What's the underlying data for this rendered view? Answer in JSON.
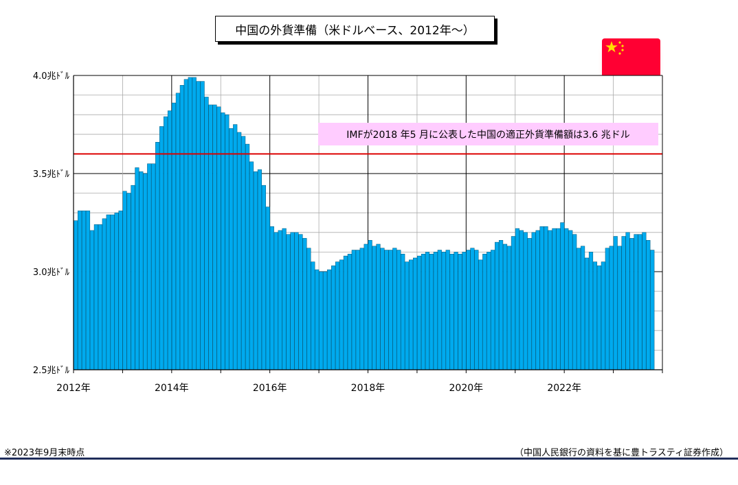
{
  "title": "中国の外貨準備（米ドルベース、2012年～）",
  "note_left": "※2023年9月末時点",
  "note_right": "（中国人民銀行の資料を基に豊トラスティ証券作成）",
  "imf_annotation": "IMFが2018 年5 月に公表した中国の適正外貨準備額は3.6 兆ドル",
  "flag": {
    "name": "china-flag-icon",
    "color": "#ff0033",
    "star_color": "#ffde00"
  },
  "chart_data": {
    "type": "bar",
    "title": "中国の外貨準備（米ドルベース、2012年～）",
    "xlabel": "",
    "ylabel": "",
    "ylim": [
      2.5,
      4.0
    ],
    "yticks": [
      2.5,
      3.0,
      3.5,
      4.0
    ],
    "ytick_labels": [
      "2.5兆ﾄﾞﾙ",
      "3.0兆ﾄﾞﾙ",
      "3.5兆ﾄﾞﾙ",
      "4.0兆ﾄﾞﾙ"
    ],
    "xtick_labels": [
      "2012年",
      "2014年",
      "2016年",
      "2018年",
      "2020年",
      "2022年"
    ],
    "start": "2012-01",
    "end": "2023-09",
    "bar_color": "#00aaee",
    "reference_line": {
      "value": 3.6,
      "color": "#dd0000"
    },
    "grid": true,
    "values": [
      3.26,
      3.31,
      3.31,
      3.31,
      3.21,
      3.24,
      3.24,
      3.27,
      3.29,
      3.29,
      3.3,
      3.31,
      3.41,
      3.4,
      3.44,
      3.53,
      3.51,
      3.5,
      3.55,
      3.55,
      3.66,
      3.74,
      3.79,
      3.82,
      3.86,
      3.91,
      3.95,
      3.98,
      3.99,
      3.99,
      3.97,
      3.97,
      3.89,
      3.85,
      3.85,
      3.84,
      3.81,
      3.8,
      3.73,
      3.75,
      3.71,
      3.69,
      3.65,
      3.56,
      3.51,
      3.52,
      3.44,
      3.33,
      3.23,
      3.2,
      3.21,
      3.22,
      3.19,
      3.2,
      3.2,
      3.19,
      3.17,
      3.12,
      3.05,
      3.01,
      3.0,
      3.0,
      3.01,
      3.03,
      3.05,
      3.06,
      3.08,
      3.09,
      3.11,
      3.11,
      3.12,
      3.14,
      3.16,
      3.13,
      3.14,
      3.12,
      3.11,
      3.11,
      3.12,
      3.11,
      3.09,
      3.05,
      3.06,
      3.07,
      3.08,
      3.09,
      3.1,
      3.09,
      3.1,
      3.11,
      3.1,
      3.11,
      3.09,
      3.1,
      3.09,
      3.1,
      3.11,
      3.12,
      3.11,
      3.06,
      3.09,
      3.1,
      3.11,
      3.15,
      3.16,
      3.14,
      3.13,
      3.18,
      3.22,
      3.21,
      3.2,
      3.17,
      3.2,
      3.21,
      3.23,
      3.23,
      3.21,
      3.22,
      3.22,
      3.25,
      3.22,
      3.21,
      3.19,
      3.12,
      3.13,
      3.07,
      3.1,
      3.05,
      3.03,
      3.05,
      3.12,
      3.13,
      3.18,
      3.13,
      3.18,
      3.2,
      3.17,
      3.19,
      3.19,
      3.2,
      3.16,
      3.11
    ]
  }
}
